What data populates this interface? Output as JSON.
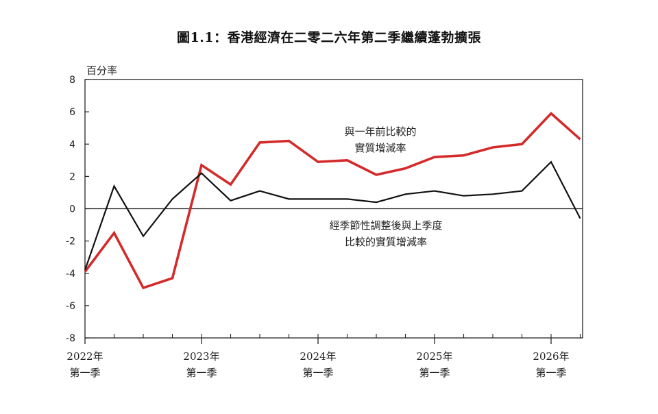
{
  "title": "圖1.1：香港經濟在二零二六年第二季繼續蓬勃擴張",
  "chart_data": {
    "type": "line",
    "title": "圖1.1：香港經濟在二零二六年第二季繼續蓬勃擴張",
    "ylabel": "百分率",
    "ylim": [
      -8,
      8
    ],
    "yticks": [
      8,
      6,
      4,
      2,
      0,
      -2,
      -4,
      -6,
      -8
    ],
    "ytick_labels": [
      "8",
      "6",
      "4",
      "2",
      "0",
      "-2",
      "-4",
      "-6",
      "-8"
    ],
    "x": [
      "2022Q1",
      "2022Q2",
      "2022Q3",
      "2022Q4",
      "2023Q1",
      "2023Q2",
      "2023Q3",
      "2023Q4",
      "2024Q1",
      "2024Q2",
      "2024Q3",
      "2024Q4",
      "2025Q1",
      "2025Q2",
      "2025Q3",
      "2025Q4",
      "2026Q1",
      "2026Q2"
    ],
    "xtick_labels": [
      {
        "index": 0,
        "year": "2022年",
        "quarter": "第一季"
      },
      {
        "index": 4,
        "year": "2023年",
        "quarter": "第一季"
      },
      {
        "index": 8,
        "year": "2024年",
        "quarter": "第一季"
      },
      {
        "index": 12,
        "year": "2025年",
        "quarter": "第一季"
      },
      {
        "index": 16,
        "year": "2026年",
        "quarter": "第一季"
      }
    ],
    "series": [
      {
        "id": "yoy",
        "label_lines": [
          "與一年前比較的",
          "實質增減率"
        ],
        "color": "#d42a2a",
        "values": [
          -3.9,
          -1.5,
          -4.9,
          -4.3,
          2.7,
          1.5,
          4.1,
          4.2,
          2.9,
          3.0,
          2.1,
          2.5,
          3.2,
          3.3,
          3.8,
          4.0,
          5.9,
          4.3
        ]
      },
      {
        "id": "qoq",
        "label_lines": [
          "經季節性調整後與上季度",
          "比較的實質增減率"
        ],
        "color": "#111111",
        "values": [
          -3.8,
          1.4,
          -1.7,
          0.6,
          2.2,
          0.5,
          1.1,
          0.6,
          0.6,
          0.6,
          0.4,
          0.9,
          1.1,
          0.8,
          0.9,
          1.1,
          2.9,
          -0.6
        ]
      }
    ],
    "grid": false,
    "legend": "none"
  }
}
